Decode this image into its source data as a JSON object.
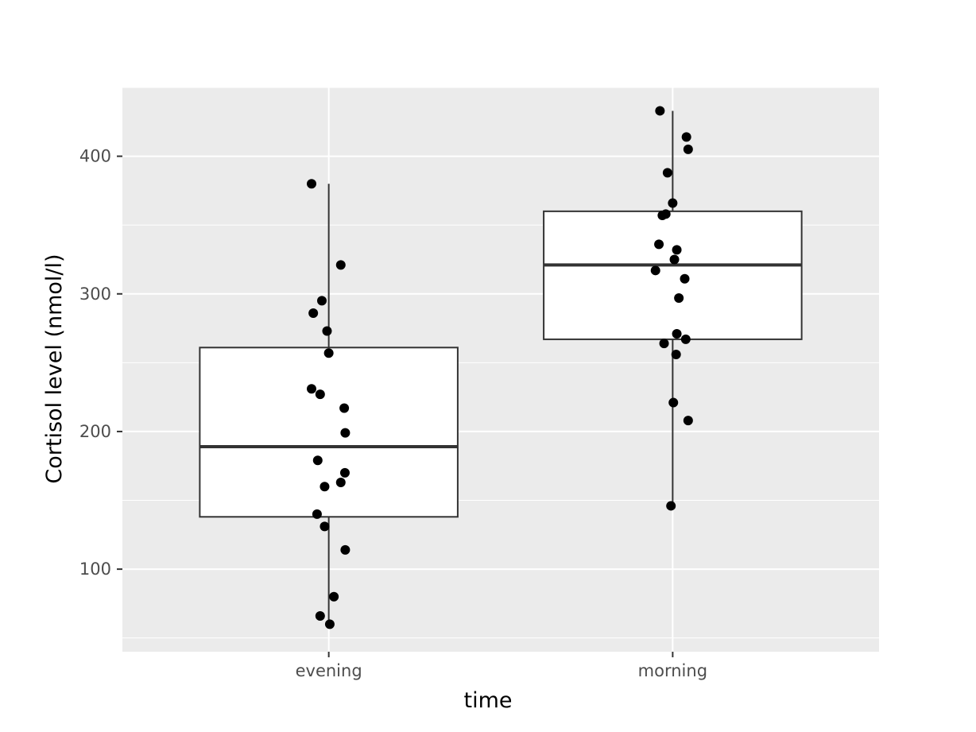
{
  "chart_data": {
    "type": "boxplot",
    "xlabel": "time",
    "ylabel": "Cortisol level (nmol/l)",
    "categories": [
      "evening",
      "morning"
    ],
    "ylim": [
      40,
      450
    ],
    "yticks": [
      100,
      200,
      300,
      400
    ],
    "grid": true,
    "background": "#ebebeb",
    "grid_color": "#ffffff",
    "box_fill": "#ffffff",
    "box_stroke": "#333333",
    "point_color": "#000000",
    "boxes": [
      {
        "category": "evening",
        "whisker_low": 60,
        "q1": 138,
        "median": 189,
        "q3": 261,
        "whisker_high": 380
      },
      {
        "category": "morning",
        "whisker_low": 146,
        "q1": 267,
        "median": 321,
        "q3": 360,
        "whisker_high": 433
      }
    ],
    "points": [
      {
        "category": "evening",
        "values": [
          380,
          321,
          295,
          286,
          273,
          257,
          231,
          227,
          217,
          199,
          179,
          170,
          163,
          160,
          140,
          131,
          114,
          80,
          66,
          60
        ],
        "jitter": [
          -0.05,
          0.035,
          -0.02,
          -0.045,
          -0.005,
          0.0,
          -0.05,
          -0.025,
          0.045,
          0.048,
          -0.032,
          0.047,
          0.035,
          -0.012,
          -0.034,
          -0.012,
          0.048,
          0.015,
          -0.025,
          0.003
        ]
      },
      {
        "category": "morning",
        "values": [
          433,
          414,
          405,
          388,
          366,
          358,
          357,
          336,
          332,
          325,
          317,
          311,
          297,
          271,
          267,
          264,
          256,
          221,
          208,
          146
        ],
        "jitter": [
          -0.037,
          0.04,
          0.045,
          -0.015,
          0.0,
          -0.02,
          -0.03,
          -0.04,
          0.012,
          0.005,
          -0.05,
          0.035,
          0.018,
          0.012,
          0.038,
          -0.025,
          0.01,
          0.002,
          0.045,
          -0.005
        ]
      }
    ]
  }
}
